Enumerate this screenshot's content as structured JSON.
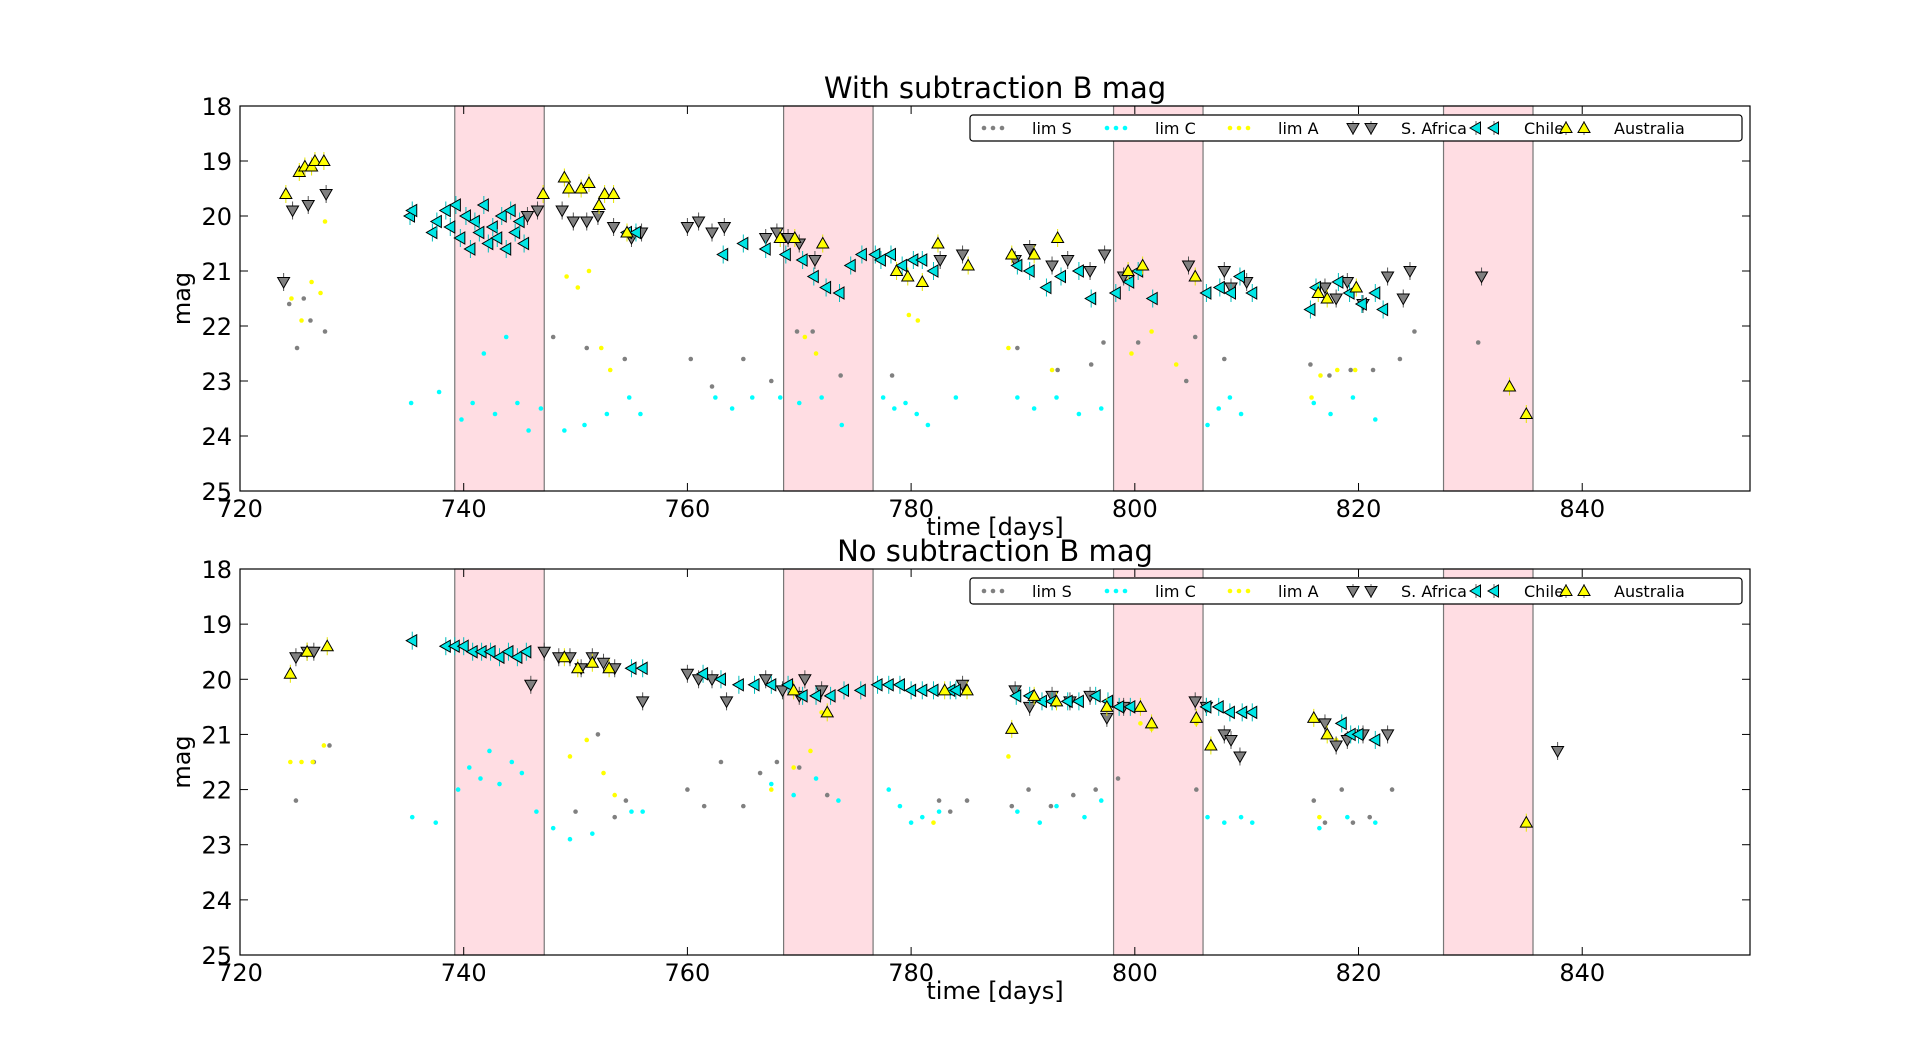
{
  "chart_data": [
    {
      "type": "scatter",
      "title": "With subtraction B mag",
      "xlabel": "time [days]",
      "ylabel": "mag",
      "xlim": [
        720,
        855
      ],
      "ylim": [
        25,
        18
      ],
      "y_inverted": true,
      "xticks": [
        720,
        740,
        760,
        780,
        800,
        820,
        840
      ],
      "yticks": [
        18,
        19,
        20,
        21,
        22,
        23,
        24,
        25
      ],
      "grid": false,
      "legend_position": "top-right",
      "shaded_intervals": [
        [
          739.2,
          747.2
        ],
        [
          768.6,
          776.6
        ],
        [
          798.1,
          806.1
        ],
        [
          827.6,
          835.6
        ]
      ],
      "shade_color": "#ffdde3",
      "series": [
        {
          "name": "lim S",
          "marker": "dot",
          "color": "#808080",
          "x": [
            724.4,
            725.1,
            725.7,
            726.3,
            727.6,
            748.0,
            751.0,
            754.4,
            760.3,
            762.2,
            765.0,
            767.5,
            769.8,
            771.2,
            773.7,
            778.3,
            789.5,
            793.1,
            796.1,
            797.2,
            800.3,
            804.6,
            805.4,
            808.0,
            815.7,
            817.4,
            819.3,
            821.3,
            823.7,
            825.0,
            830.7
          ],
          "y": [
            21.6,
            22.4,
            21.5,
            21.9,
            22.1,
            22.2,
            22.4,
            22.6,
            22.6,
            23.1,
            22.6,
            23.0,
            22.1,
            22.1,
            22.9,
            22.9,
            22.4,
            22.8,
            22.7,
            22.3,
            22.3,
            23.0,
            22.2,
            22.6,
            22.7,
            22.9,
            22.8,
            22.8,
            22.6,
            22.1,
            22.3
          ]
        },
        {
          "name": "lim C",
          "marker": "dot",
          "color": "#00ffff",
          "x": [
            735.3,
            737.8,
            739.8,
            740.8,
            741.8,
            742.8,
            743.8,
            744.8,
            745.8,
            746.9,
            749.0,
            750.8,
            752.8,
            754.8,
            755.8,
            762.5,
            764.0,
            765.8,
            768.3,
            770.0,
            772.0,
            773.8,
            777.5,
            778.5,
            779.5,
            780.5,
            781.5,
            784.0,
            789.5,
            791.0,
            793.0,
            795.0,
            797.0,
            806.5,
            807.5,
            808.5,
            809.5,
            816.0,
            817.5,
            819.5,
            821.5
          ],
          "y": [
            23.4,
            23.2,
            23.7,
            23.4,
            22.5,
            23.6,
            22.2,
            23.4,
            23.9,
            23.5,
            23.9,
            23.8,
            23.6,
            23.3,
            23.6,
            23.3,
            23.5,
            23.3,
            23.3,
            23.4,
            23.3,
            23.8,
            23.3,
            23.5,
            23.4,
            23.6,
            23.8,
            23.3,
            23.3,
            23.5,
            23.3,
            23.6,
            23.5,
            23.8,
            23.5,
            23.3,
            23.6,
            23.4,
            23.6,
            23.3,
            23.7
          ]
        },
        {
          "name": "lim A",
          "marker": "dot",
          "color": "#ffff00",
          "x": [
            724.6,
            725.5,
            726.4,
            727.2,
            727.6,
            749.2,
            750.2,
            751.2,
            752.3,
            753.1,
            770.5,
            771.5,
            779.8,
            780.6,
            788.7,
            792.6,
            799.7,
            801.5,
            803.7,
            815.8,
            816.6,
            818.1,
            819.7
          ],
          "y": [
            21.5,
            21.9,
            21.2,
            21.4,
            20.1,
            21.1,
            21.3,
            21.0,
            22.4,
            22.8,
            22.2,
            22.5,
            21.8,
            21.9,
            22.4,
            22.8,
            22.5,
            22.1,
            22.7,
            23.3,
            22.9,
            22.8,
            22.8
          ]
        },
        {
          "name": "S. Africa",
          "marker": "tri-down",
          "color": "#808080",
          "edge": "#000000",
          "x": [
            723.9,
            724.7,
            726.1,
            727.7,
            745.7,
            746.6,
            748.8,
            749.8,
            751.0,
            752.0,
            753.4,
            755.0,
            755.9,
            760.0,
            761.0,
            762.2,
            763.3,
            767.0,
            768.0,
            769.0,
            770.0,
            771.4,
            782.6,
            784.6,
            789.3,
            790.6,
            792.6,
            794.0,
            796.0,
            797.3,
            799.0,
            804.8,
            808.0,
            808.6,
            810.0,
            817.0,
            818.0,
            819.0,
            820.4,
            822.6,
            824.0,
            824.6,
            831.0
          ],
          "y": [
            21.2,
            19.9,
            19.8,
            19.6,
            20.0,
            19.9,
            19.9,
            20.1,
            20.1,
            20.0,
            20.2,
            20.4,
            20.3,
            20.2,
            20.1,
            20.3,
            20.2,
            20.4,
            20.3,
            20.4,
            20.5,
            20.8,
            20.8,
            20.7,
            20.8,
            20.6,
            20.9,
            20.8,
            21.0,
            20.7,
            21.1,
            20.9,
            21.0,
            21.3,
            21.2,
            21.3,
            21.5,
            21.2,
            21.6,
            21.1,
            21.5,
            21.0,
            21.1
          ]
        },
        {
          "name": "Chile",
          "marker": "tri-left",
          "color": "#00e5e5",
          "edge": "#000000",
          "x": [
            735.2,
            735.4,
            737.2,
            737.6,
            738.4,
            738.8,
            739.3,
            739.7,
            740.2,
            740.6,
            741.0,
            741.4,
            741.8,
            742.2,
            742.6,
            743.0,
            743.4,
            743.8,
            744.2,
            744.6,
            745.0,
            745.4,
            754.6,
            755.4,
            763.2,
            765.0,
            767.0,
            768.8,
            770.3,
            771.3,
            772.4,
            773.6,
            774.6,
            775.6,
            776.8,
            777.3,
            778.2,
            779.2,
            780.2,
            781.0,
            782.0,
            789.5,
            790.6,
            792.1,
            793.4,
            795.0,
            796.1,
            798.3,
            799.5,
            800.3,
            801.6,
            806.4,
            807.6,
            808.6,
            809.4,
            810.5,
            815.7,
            816.2,
            818.2,
            819.2,
            820.3,
            821.5,
            822.2
          ],
          "y": [
            20.0,
            19.9,
            20.3,
            20.1,
            19.9,
            20.2,
            19.8,
            20.4,
            20.0,
            20.6,
            20.1,
            20.3,
            19.8,
            20.5,
            20.2,
            20.4,
            20.0,
            20.6,
            19.9,
            20.3,
            20.1,
            20.5,
            20.3,
            20.3,
            20.7,
            20.5,
            20.6,
            20.7,
            20.8,
            21.1,
            21.3,
            21.4,
            20.9,
            20.7,
            20.7,
            20.8,
            20.7,
            20.9,
            20.8,
            20.8,
            21.0,
            20.9,
            21.0,
            21.3,
            21.1,
            21.0,
            21.5,
            21.4,
            21.2,
            21.0,
            21.5,
            21.4,
            21.3,
            21.4,
            21.1,
            21.4,
            21.7,
            21.3,
            21.2,
            21.4,
            21.6,
            21.4,
            21.7
          ]
        },
        {
          "name": "Australia",
          "marker": "tri-up",
          "color": "#ffff00",
          "edge": "#000000",
          "x": [
            724.1,
            725.3,
            725.8,
            726.4,
            726.7,
            727.5,
            747.1,
            749.0,
            749.4,
            750.5,
            751.2,
            752.1,
            752.6,
            753.4,
            754.6,
            768.3,
            769.6,
            772.1,
            778.7,
            779.7,
            781.0,
            782.4,
            785.1,
            789.0,
            791.0,
            793.1,
            799.4,
            800.7,
            805.4,
            816.4,
            817.2,
            819.8,
            833.5,
            835.0
          ],
          "y": [
            19.6,
            19.2,
            19.1,
            19.1,
            19.0,
            19.0,
            19.6,
            19.3,
            19.5,
            19.5,
            19.4,
            19.8,
            19.6,
            19.6,
            20.3,
            20.4,
            20.4,
            20.5,
            21.0,
            21.1,
            21.2,
            20.5,
            20.9,
            20.7,
            20.7,
            20.4,
            21.0,
            20.9,
            21.1,
            21.4,
            21.5,
            21.3,
            23.1,
            23.6
          ]
        }
      ]
    },
    {
      "type": "scatter",
      "title": "No subtraction B mag",
      "xlabel": "time [days]",
      "ylabel": "mag",
      "xlim": [
        720,
        855
      ],
      "ylim": [
        25,
        18
      ],
      "y_inverted": true,
      "xticks": [
        720,
        740,
        760,
        780,
        800,
        820,
        840
      ],
      "yticks": [
        18,
        19,
        20,
        21,
        22,
        23,
        24,
        25
      ],
      "grid": false,
      "legend_position": "top-right",
      "shaded_intervals": [
        [
          739.2,
          747.2
        ],
        [
          768.6,
          776.6
        ],
        [
          798.1,
          806.1
        ],
        [
          827.6,
          835.6
        ]
      ],
      "shade_color": "#ffdde3",
      "series": [
        {
          "name": "lim S",
          "marker": "dot",
          "color": "#808080",
          "x": [
            725.0,
            726.6,
            728.0,
            750.0,
            752.0,
            753.5,
            754.5,
            760.0,
            761.5,
            763.0,
            765.0,
            766.5,
            768.0,
            770.0,
            772.5,
            782.5,
            783.5,
            785.0,
            789.0,
            790.5,
            792.5,
            794.5,
            796.5,
            798.5,
            805.5,
            816.0,
            817.0,
            818.5,
            819.5,
            821.0,
            823.0
          ],
          "y": [
            22.2,
            21.5,
            21.2,
            22.4,
            21.0,
            22.5,
            22.2,
            22.0,
            22.3,
            21.5,
            22.3,
            21.7,
            21.5,
            21.6,
            22.1,
            22.2,
            22.4,
            22.2,
            22.3,
            22.0,
            22.3,
            22.1,
            22.0,
            21.8,
            22.0,
            22.2,
            22.6,
            22.0,
            22.6,
            22.5,
            22.0
          ]
        },
        {
          "name": "lim C",
          "marker": "dot",
          "color": "#00ffff",
          "x": [
            735.4,
            737.5,
            739.5,
            740.5,
            741.5,
            742.3,
            743.2,
            744.3,
            745.2,
            746.5,
            748.0,
            749.5,
            751.5,
            755.0,
            756.0,
            767.5,
            769.5,
            771.5,
            773.5,
            778.0,
            779.0,
            780.0,
            781.0,
            782.5,
            789.5,
            791.5,
            793.0,
            795.5,
            797.0,
            806.5,
            808.0,
            809.5,
            810.5,
            816.5,
            819.0,
            821.5
          ],
          "y": [
            22.5,
            22.6,
            22.0,
            21.6,
            21.8,
            21.3,
            21.9,
            21.5,
            21.7,
            22.4,
            22.7,
            22.9,
            22.8,
            22.4,
            22.4,
            21.9,
            22.1,
            21.8,
            22.2,
            22.0,
            22.3,
            22.6,
            22.5,
            22.4,
            22.4,
            22.6,
            22.3,
            22.5,
            22.2,
            22.5,
            22.6,
            22.5,
            22.6,
            22.7,
            22.5,
            22.6
          ]
        },
        {
          "name": "lim A",
          "marker": "dot",
          "color": "#ffff00",
          "x": [
            724.5,
            725.5,
            726.5,
            727.5,
            749.5,
            751.0,
            752.5,
            753.5,
            767.5,
            769.5,
            771.0,
            772.0,
            782.0,
            788.7,
            800.5,
            801.5,
            805.5,
            816.5,
            818.0
          ],
          "y": [
            21.5,
            21.5,
            21.5,
            21.2,
            21.4,
            21.1,
            21.7,
            22.1,
            22.0,
            21.6,
            21.3,
            20.6,
            22.6,
            21.4,
            20.8,
            20.9,
            20.8,
            22.5,
            21.1
          ]
        },
        {
          "name": "S. Africa",
          "marker": "tri-down",
          "color": "#808080",
          "edge": "#000000",
          "x": [
            725.0,
            726.0,
            726.6,
            746.0,
            747.2,
            748.5,
            749.5,
            750.5,
            751.5,
            752.5,
            753.5,
            756.0,
            760.0,
            761.0,
            762.2,
            763.5,
            767.0,
            768.5,
            770.0,
            770.5,
            772.0,
            784.6,
            789.3,
            790.6,
            792.6,
            794.2,
            796.0,
            797.5,
            799.0,
            805.4,
            806.4,
            808.0,
            808.6,
            809.4,
            817.0,
            818.0,
            819.0,
            820.4,
            822.6,
            837.8
          ],
          "y": [
            19.6,
            19.5,
            19.5,
            20.1,
            19.5,
            19.6,
            19.6,
            19.8,
            19.6,
            19.7,
            19.8,
            20.4,
            19.9,
            20.0,
            20.0,
            20.4,
            20.0,
            20.2,
            20.3,
            20.0,
            20.2,
            20.1,
            20.2,
            20.5,
            20.3,
            20.4,
            20.3,
            20.7,
            20.5,
            20.4,
            20.5,
            21.0,
            21.1,
            21.4,
            20.8,
            21.2,
            21.1,
            21.0,
            21.0,
            21.3
          ]
        },
        {
          "name": "Chile",
          "marker": "tri-left",
          "color": "#00e5e5",
          "edge": "#000000",
          "x": [
            735.4,
            738.4,
            739.2,
            740.0,
            740.8,
            741.6,
            742.4,
            743.2,
            744.0,
            744.8,
            745.6,
            755.0,
            756.0,
            761.4,
            763.0,
            764.6,
            766.0,
            767.5,
            769.0,
            770.3,
            771.5,
            772.8,
            774.0,
            775.5,
            777.0,
            778.0,
            779.0,
            780.0,
            781.0,
            782.0,
            783.5,
            784.0,
            789.4,
            790.6,
            791.7,
            792.6,
            794.0,
            795.0,
            796.5,
            797.6,
            798.6,
            799.6,
            806.4,
            807.5,
            808.5,
            809.6,
            810.5,
            818.5,
            819.3,
            820.0,
            821.5
          ],
          "y": [
            19.3,
            19.4,
            19.4,
            19.4,
            19.5,
            19.5,
            19.5,
            19.6,
            19.5,
            19.6,
            19.5,
            19.8,
            19.8,
            19.9,
            20.0,
            20.1,
            20.1,
            20.1,
            20.1,
            20.3,
            20.3,
            20.3,
            20.2,
            20.2,
            20.1,
            20.1,
            20.1,
            20.2,
            20.2,
            20.2,
            20.2,
            20.2,
            20.3,
            20.3,
            20.4,
            20.4,
            20.4,
            20.4,
            20.3,
            20.4,
            20.5,
            20.5,
            20.5,
            20.5,
            20.6,
            20.6,
            20.6,
            20.8,
            21.0,
            21.0,
            21.1
          ]
        },
        {
          "name": "Australia",
          "marker": "tri-up",
          "color": "#ffff00",
          "edge": "#000000",
          "x": [
            724.5,
            726.0,
            727.8,
            749.0,
            750.2,
            751.5,
            753.0,
            769.5,
            772.5,
            783.0,
            785.0,
            789.0,
            791.0,
            793.0,
            797.5,
            800.5,
            801.5,
            805.5,
            806.8,
            816.0,
            817.2,
            835.0
          ],
          "y": [
            19.9,
            19.5,
            19.4,
            19.6,
            19.8,
            19.7,
            19.8,
            20.2,
            20.6,
            20.2,
            20.2,
            20.9,
            20.3,
            20.4,
            20.5,
            20.5,
            20.8,
            20.7,
            21.2,
            20.7,
            21.0,
            22.6
          ]
        }
      ]
    }
  ]
}
